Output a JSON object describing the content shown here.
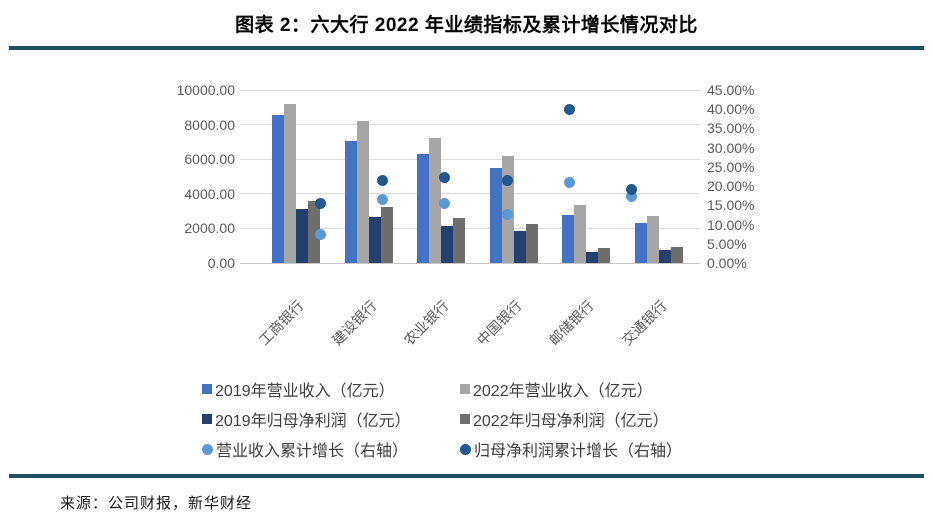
{
  "title": "图表 2：六大行 2022 年业绩指标及累计增长情况对比",
  "source": "来源：公司财报，新华财经",
  "colors": {
    "rule_teal": "#20505F",
    "bar_blue_2019_revenue": "#4472C4",
    "bar_gray_2022_revenue": "#A6A6A6",
    "bar_navy_2019_profit": "#24406E",
    "bar_darkgray_2022_profit": "#6E6E6E",
    "dot_lightblue_revenue_growth": "#5B9BD5",
    "dot_darkblue_profit_growth": "#20588F",
    "gridline": "#DCDCDC",
    "axis_text": "#595959",
    "legend_text": "#3F3F3F"
  },
  "chart_data": {
    "type": "bar",
    "subtype": "grouped-bars-with-scatter-overlay",
    "categories": [
      "工商银行",
      "建设银行",
      "农业银行",
      "中国银行",
      "邮储银行",
      "交通银行"
    ],
    "series": [
      {
        "name": "2019年营业收入（亿元）",
        "kind": "bar",
        "axis": "left",
        "color_key": "bar_blue_2019_revenue",
        "values": [
          8551.64,
          7056.29,
          6272.68,
          5491.82,
          2768.09,
          2324.72
        ]
      },
      {
        "name": "2022年营业收入（亿元）",
        "kind": "bar",
        "axis": "left",
        "color_key": "bar_gray_2022_revenue",
        "values": [
          9179.89,
          8224.73,
          7248.68,
          6180.09,
          3349.56,
          2729.78
        ]
      },
      {
        "name": "2019年归母净利润（亿元）",
        "kind": "bar",
        "axis": "left",
        "color_key": "bar_navy_2019_profit",
        "values": [
          3122.24,
          2667.33,
          2120.98,
          1874.05,
          609.33,
          772.81
        ]
      },
      {
        "name": "2022年归母净利润（亿元）",
        "kind": "bar",
        "axis": "left",
        "color_key": "bar_darkgray_2022_profit",
        "values": [
          3604.83,
          3238.61,
          2591.4,
          2274.39,
          852.24,
          921.49
        ]
      },
      {
        "name": "营业收入累计增长（右轴）",
        "kind": "scatter",
        "axis": "right",
        "color_key": "dot_lightblue_revenue_growth",
        "values": [
          7.35,
          16.56,
          15.56,
          12.53,
          21.01,
          17.42
        ]
      },
      {
        "name": "归母净利润累计增长（右轴）",
        "kind": "scatter",
        "axis": "right",
        "color_key": "dot_darkblue_profit_growth",
        "values": [
          15.46,
          21.42,
          22.18,
          21.36,
          39.86,
          19.24
        ]
      }
    ],
    "left_axis": {
      "min": 0,
      "max": 10000,
      "step": 2000,
      "tick_labels": [
        "10000.00",
        "8000.00",
        "6000.00",
        "4000.00",
        "2000.00",
        "0.00"
      ]
    },
    "right_axis": {
      "min": 0,
      "max": 45,
      "step": 5,
      "tick_labels": [
        "45.00%",
        "40.00%",
        "35.00%",
        "30.00%",
        "25.00%",
        "20.00%",
        "15.00%",
        "10.00%",
        "5.00%",
        "0.00%"
      ]
    },
    "grid": true,
    "legend_position": "bottom"
  }
}
